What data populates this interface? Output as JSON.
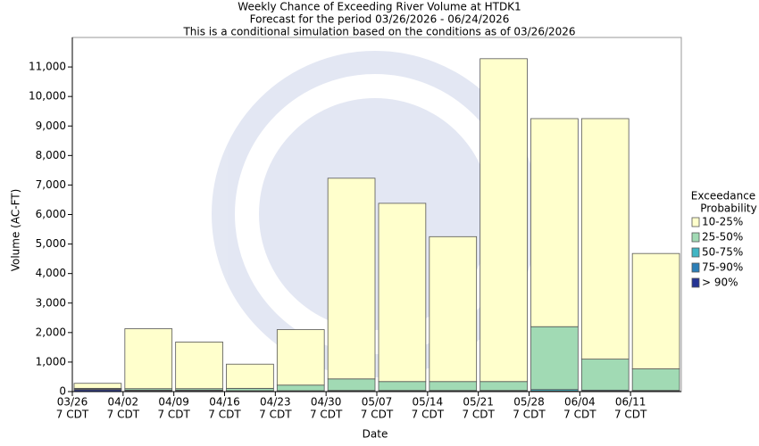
{
  "chart_data": {
    "type": "stacked-bar",
    "title_lines": [
      "Weekly Chance of Exceeding River Volume at HTDK1",
      "Forecast for the period 03/26/2026 - 06/24/2026",
      "This is a conditional simulation based on the conditions as of 03/26/2026"
    ],
    "y_label": "Volume (AC-FT)",
    "x_label": "Date",
    "xticks": [
      "03/26",
      "04/02",
      "04/09",
      "04/16",
      "04/23",
      "04/30",
      "05/07",
      "05/14",
      "05/21",
      "05/28",
      "06/04",
      "06/11"
    ],
    "xtick_sublabel": "7 CDT",
    "legend_title_lines": [
      "Exceedance",
      "Probability"
    ],
    "legend_position": "right",
    "grid": false,
    "ylim": [
      0,
      12000
    ],
    "yticks": [
      0,
      {
        "value": 1000,
        "label": "1,000"
      },
      {
        "value": 2000,
        "label": "2,000"
      },
      {
        "value": 3000,
        "label": "3,000"
      },
      {
        "value": 4000,
        "label": "4,000"
      },
      {
        "value": 5000,
        "label": "5,000"
      },
      {
        "value": 6000,
        "label": "6,000"
      },
      {
        "value": 7000,
        "label": "7,000"
      },
      {
        "value": 8000,
        "label": "8,000"
      },
      {
        "value": 9000,
        "label": "9,000"
      },
      {
        "value": 10000,
        "label": "10,000"
      },
      {
        "value": 11000,
        "label": "11,000"
      }
    ],
    "series": [
      {
        "name": "10-25%",
        "color": "#ffffcc",
        "values": [
          170,
          2030,
          1580,
          820,
          1880,
          6800,
          6040,
          4910,
          10940,
          7050,
          8150,
          3910
        ]
      },
      {
        "name": "25-50%",
        "color": "#a1dab4",
        "values": [
          20,
          50,
          50,
          80,
          190,
          390,
          300,
          300,
          300,
          2130,
          1050,
          730
        ]
      },
      {
        "name": "50-75%",
        "color": "#41b6c4",
        "values": [
          10,
          10,
          10,
          10,
          10,
          20,
          20,
          20,
          20,
          50,
          30,
          20
        ]
      },
      {
        "name": "75-90%",
        "color": "#2c7fb8",
        "values": [
          20,
          10,
          10,
          10,
          10,
          10,
          10,
          10,
          10,
          10,
          10,
          10
        ]
      },
      {
        "name": "> 90%",
        "color": "#253494",
        "values": [
          60,
          30,
          30,
          10,
          10,
          10,
          10,
          10,
          10,
          10,
          10,
          10
        ]
      }
    ]
  }
}
